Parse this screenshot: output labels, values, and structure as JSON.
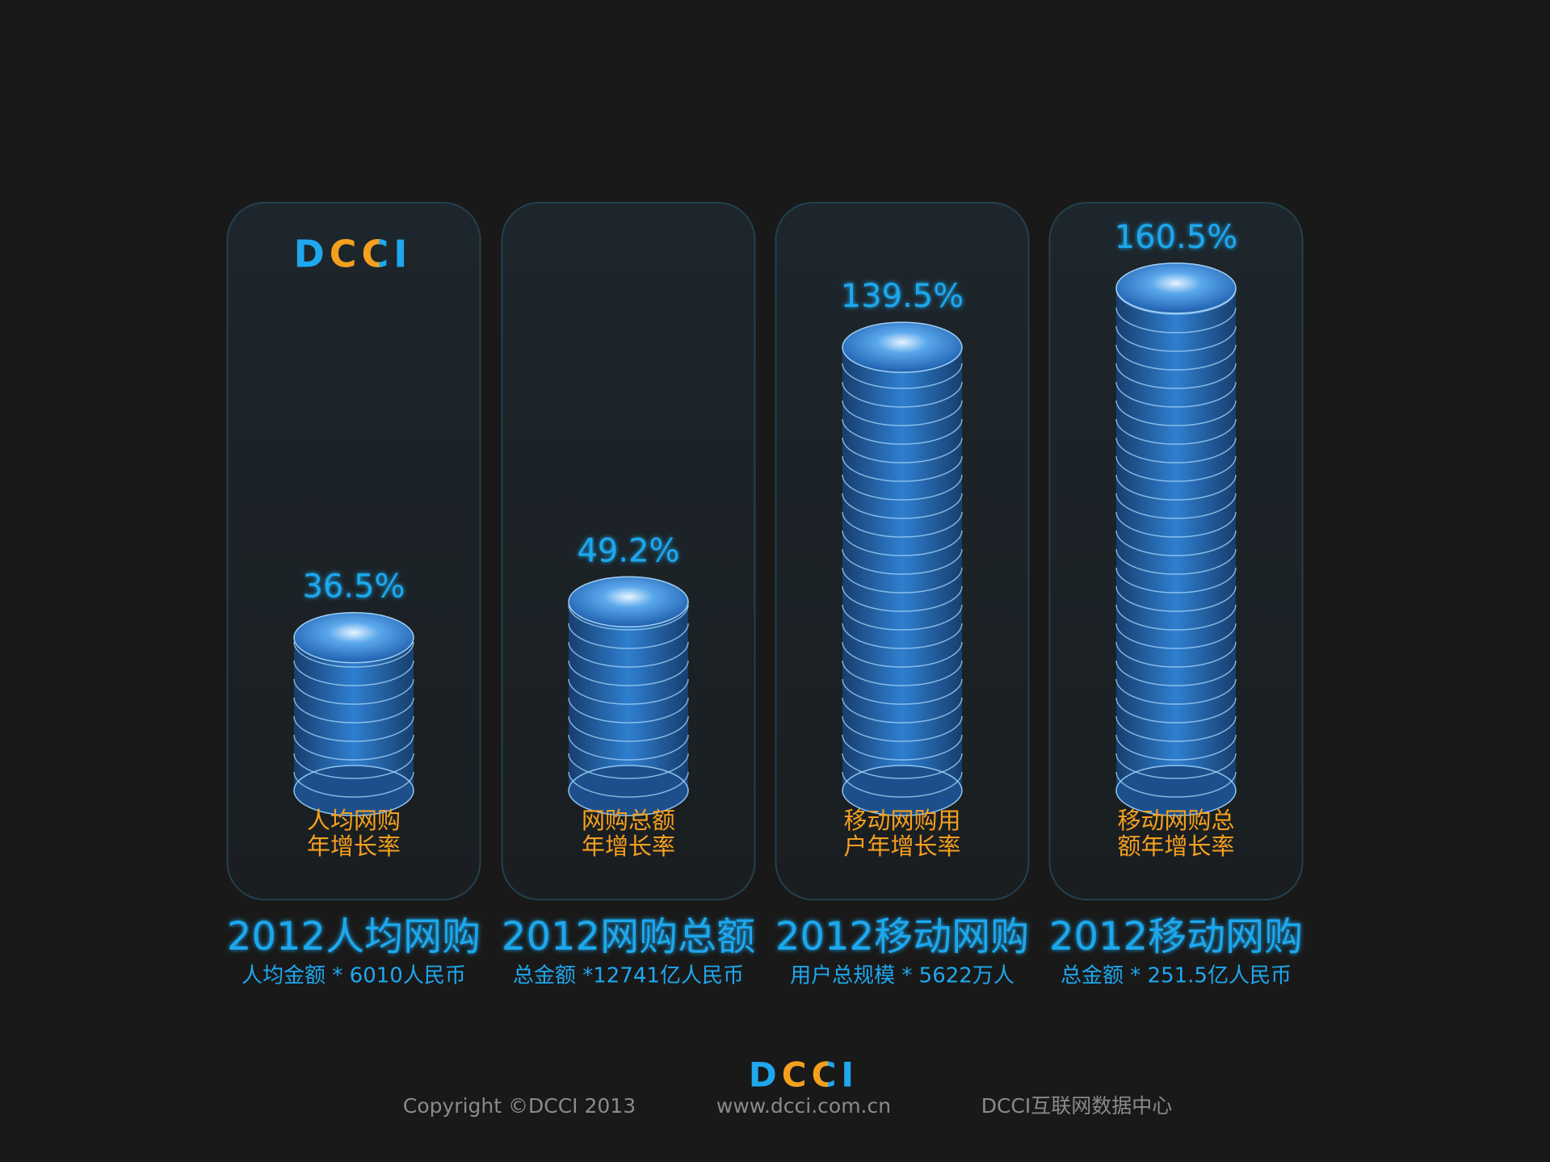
{
  "logo": "DCCI",
  "chart_data": {
    "type": "coin-stack",
    "categories": [
      [
        "人均网购",
        "年增长率"
      ],
      [
        "网购总额",
        "年增长率"
      ],
      [
        "移动网购用",
        "户年增长率"
      ],
      [
        "移动网购总",
        "额年增长率"
      ]
    ],
    "values": [
      36.5,
      49.2,
      139.5,
      160.5
    ],
    "value_labels": [
      "36.5%",
      "49.2%",
      "139.5%",
      "160.5%"
    ],
    "color": "#2f7fd0",
    "headlines": [
      "2012人均网购",
      "2012网购总额",
      "2012移动网购",
      "2012移动网购"
    ],
    "sublines": [
      "人均金额  * 6010人民币",
      "总金额 *12741亿人民币",
      "用户总规模 * 5622万人",
      "总金额 * 251.5亿人民币"
    ]
  },
  "footer": {
    "logo": "DCCI",
    "copyright": "Copyright ©DCCI 2013",
    "url": "www.dcci.com.cn",
    "org": "DCCI互联网数据中心"
  }
}
